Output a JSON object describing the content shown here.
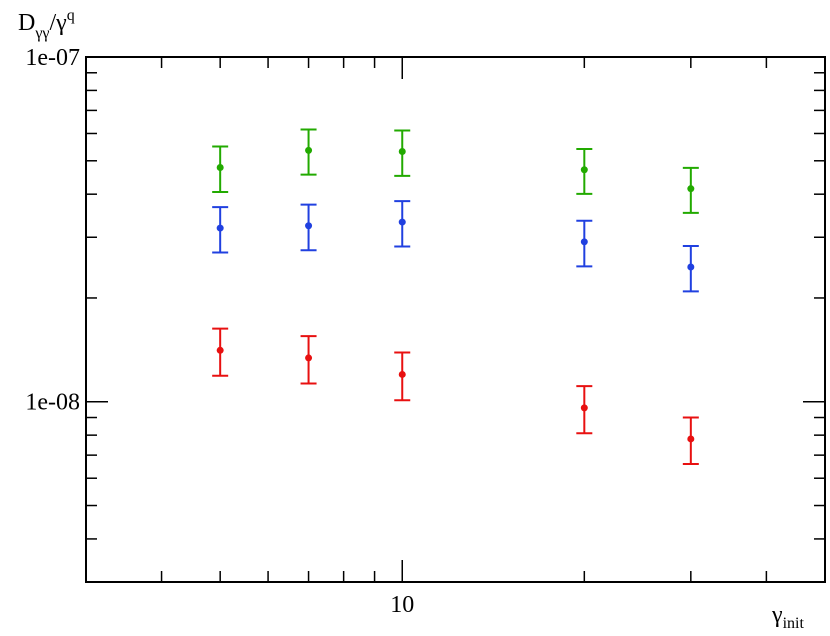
{
  "chart_data": {
    "type": "errorbar-scatter",
    "x_label": {
      "main": "γ",
      "sub": "init"
    },
    "y_label": {
      "main": "D",
      "sub": "γγ",
      "rest": "/γ",
      "sup": "q"
    },
    "x": [
      5,
      7,
      10,
      20,
      30
    ],
    "series": [
      {
        "color": "#22aa00",
        "values": [
          4.78e-08,
          5.36e-08,
          5.32e-08,
          4.71e-08,
          4.15e-08
        ],
        "errors": [
          7.2e-09,
          8e-09,
          8e-09,
          7e-09,
          6.2e-09
        ]
      },
      {
        "color": "#2040e0",
        "values": [
          3.19e-08,
          3.24e-08,
          3.32e-08,
          2.91e-08,
          2.46e-08
        ],
        "errors": [
          4.8e-09,
          4.9e-09,
          5e-09,
          4.4e-09,
          3.7e-09
        ]
      },
      {
        "color": "#e81010",
        "values": [
          1.41e-08,
          1.34e-08,
          1.2e-08,
          9.6e-09,
          7.8e-09
        ],
        "errors": [
          2.2e-09,
          2.1e-09,
          1.9e-09,
          1.5e-09,
          1.2e-09
        ]
      }
    ],
    "xlim": [
      3,
      50
    ],
    "ylim": [
      3e-09,
      1e-07
    ],
    "xlog": true,
    "ylog": true,
    "xticks": [
      4,
      5,
      6,
      7,
      8,
      9,
      10,
      20,
      30,
      40
    ],
    "yticks": [
      4e-09,
      5e-09,
      6e-09,
      7e-09,
      8e-09,
      9e-09,
      {
        "value": 1e-08,
        "label": "1e-08"
      },
      2e-08,
      3e-08,
      4e-08,
      5e-08,
      6e-08,
      7e-08,
      8e-08,
      9e-08,
      {
        "value": 1e-07,
        "label": "1e-07"
      }
    ]
  }
}
